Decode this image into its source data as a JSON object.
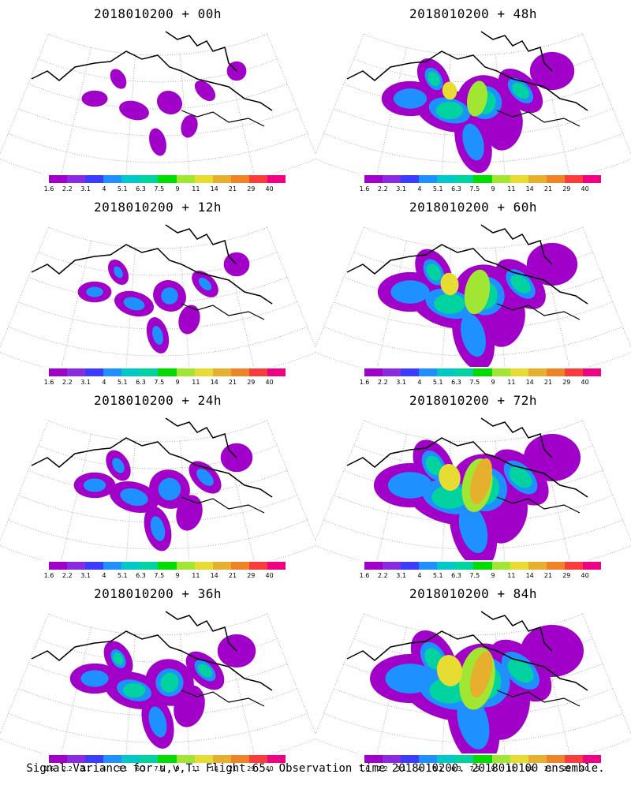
{
  "figure": {
    "caption": "Signal Variance for u,v,T. Flight 65. Observation time 2018010200. 2018010100 ensemble."
  },
  "colorbar": {
    "labels": [
      "1.6",
      "2.2",
      "3.1",
      "4",
      "5.1",
      "6.3",
      "7.5",
      "9",
      "11",
      "14",
      "21",
      "29",
      "40"
    ],
    "colors": [
      "#a000c8",
      "#8a2be2",
      "#3c3cff",
      "#1e90ff",
      "#00c8c8",
      "#00d2a0",
      "#00dc00",
      "#a0e632",
      "#e6dc32",
      "#e6af2d",
      "#f08228",
      "#fa3c3c",
      "#f00082"
    ]
  },
  "panels": [
    {
      "title": "2018010200 + 00h",
      "lead_hours": 0
    },
    {
      "title": "2018010200 + 48h",
      "lead_hours": 48
    },
    {
      "title": "2018010200 + 12h",
      "lead_hours": 12
    },
    {
      "title": "2018010200 + 60h",
      "lead_hours": 60
    },
    {
      "title": "2018010200 + 24h",
      "lead_hours": 24
    },
    {
      "title": "2018010200 + 72h",
      "lead_hours": 72
    },
    {
      "title": "2018010200 + 36h",
      "lead_hours": 36
    },
    {
      "title": "2018010200 + 84h",
      "lead_hours": 84
    }
  ]
}
